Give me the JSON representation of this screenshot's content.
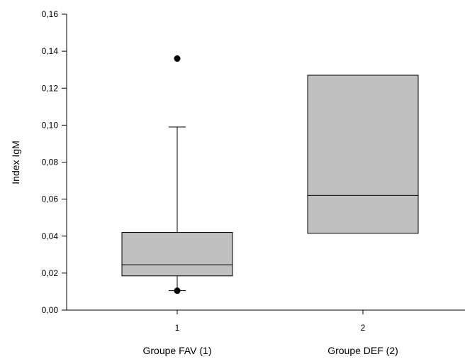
{
  "chart_data": {
    "type": "box",
    "ylabel": "Index IgM",
    "xlabel": "",
    "ylim": [
      0,
      0.16
    ],
    "yticks": [
      "0,00",
      "0,02",
      "0,04",
      "0,06",
      "0,08",
      "0,10",
      "0,12",
      "0,14",
      "0,16"
    ],
    "ytick_values": [
      0,
      0.02,
      0.04,
      0.06,
      0.08,
      0.1,
      0.12,
      0.14,
      0.16
    ],
    "xticks": [
      "1",
      "2"
    ],
    "groups": [
      {
        "tick": "1",
        "label": "Groupe FAV (1)",
        "q1": 0.0185,
        "median": 0.0245,
        "q3": 0.042,
        "whisker_low": 0.0105,
        "whisker_high": 0.099,
        "outliers": [
          0.136,
          0.0105
        ]
      },
      {
        "tick": "2",
        "label": "Groupe DEF (2)",
        "q1": 0.0415,
        "median": 0.062,
        "q3": 0.127,
        "whisker_low": null,
        "whisker_high": null,
        "outliers": []
      }
    ],
    "colors": {
      "box_fill": "#c0c0c0",
      "box_stroke": "#000000",
      "axis": "#000000"
    },
    "grid": false,
    "legend": "none"
  }
}
